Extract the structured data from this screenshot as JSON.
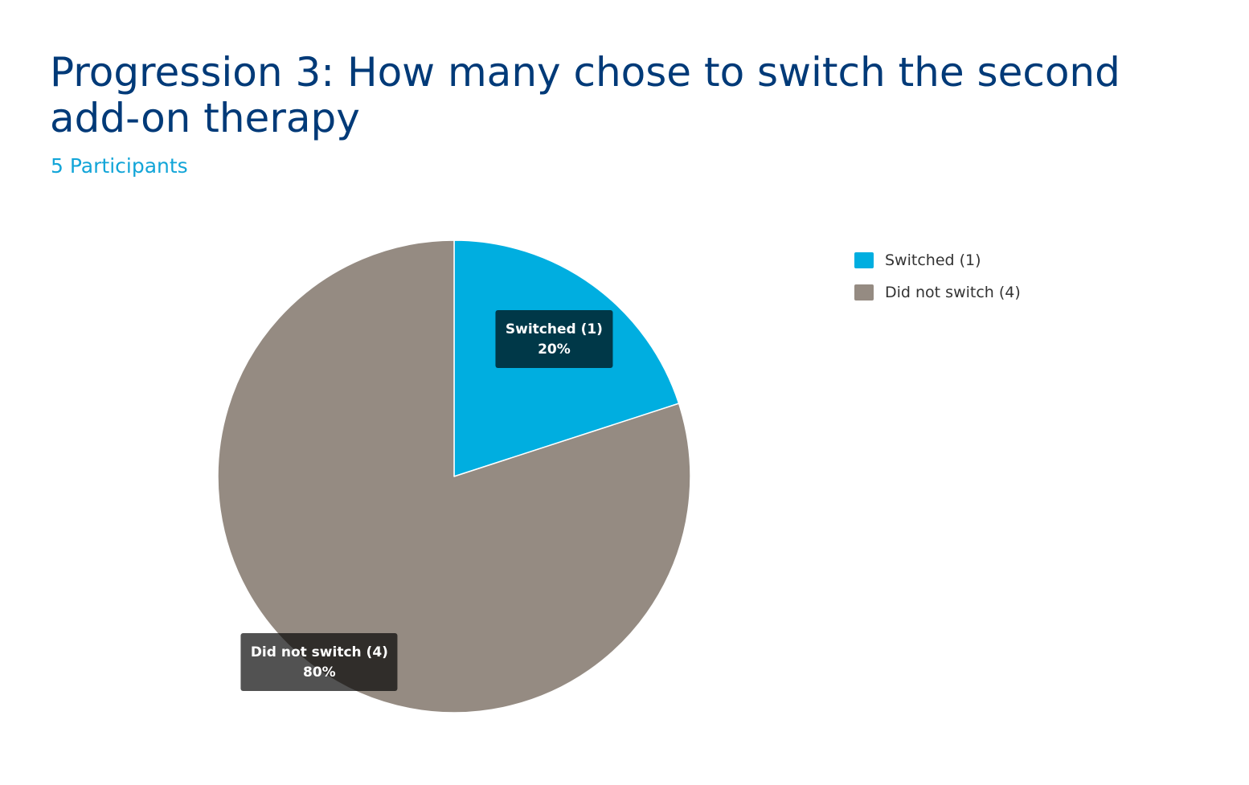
{
  "chart_data": {
    "type": "pie",
    "title": "Progression 3: How many chose to switch the second add-on therapy",
    "subtitle": "5 Participants",
    "legend_position": "right",
    "slices": [
      {
        "label": "Switched (1)",
        "value": 1,
        "percent_label": "20%",
        "color": "#00aee0"
      },
      {
        "label": "Did not switch (4)",
        "value": 4,
        "percent_label": "80%",
        "color": "#958b82"
      }
    ]
  }
}
